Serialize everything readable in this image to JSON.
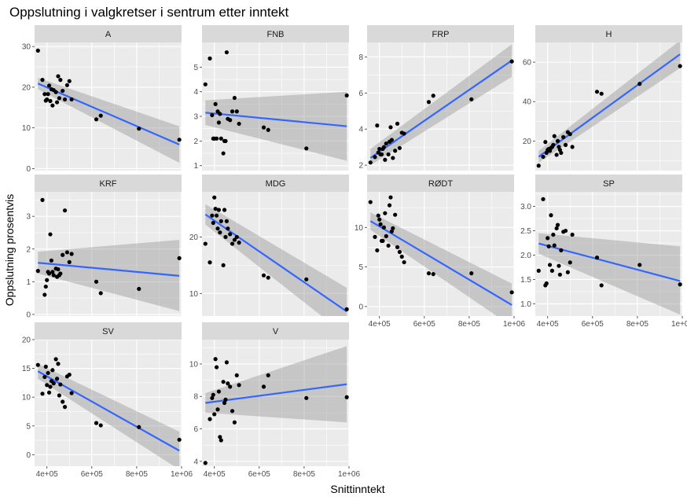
{
  "title": "Oppslutning i valgkretser i sentrum etter inntekt",
  "chart_data": {
    "type": "scatter",
    "title": "Oppslutning i valgkretser i sentrum etter inntekt",
    "xlabel": "Snittinntekt",
    "ylabel": "Oppslutning prosentvis",
    "x_ticks": [
      400000,
      600000,
      800000,
      1000000
    ],
    "x_tick_labels": [
      "4e+05",
      "6e+05",
      "8e+05",
      "1e+06"
    ],
    "xlim": [
      345000,
      1000000
    ],
    "grid": true,
    "facet_scales": "free_y",
    "colors": {
      "points": "#000000",
      "fit_line": "#3366FF",
      "ribbon": "#999999",
      "panel_bg": "#EBEBEB",
      "strip_bg": "#D9D9D9",
      "grid": "#FFFFFF"
    },
    "x": [
      360000,
      380000,
      390000,
      395000,
      400000,
      405000,
      410000,
      415000,
      420000,
      425000,
      430000,
      440000,
      445000,
      450000,
      455000,
      460000,
      470000,
      480000,
      490000,
      500000,
      510000,
      620000,
      640000,
      810000,
      990000
    ],
    "panels": [
      {
        "name": "A",
        "ylim": [
          -0.5,
          31
        ],
        "y_ticks": [
          0,
          10,
          20,
          30
        ],
        "y": [
          29,
          21.8,
          18.3,
          16.7,
          17,
          18.3,
          20.4,
          16.6,
          19.5,
          15.5,
          19.3,
          18.8,
          16.3,
          22.7,
          17.3,
          21.8,
          19.1,
          17,
          20.5,
          21.5,
          17,
          12.1,
          13,
          9.8,
          7.1
        ],
        "fit": {
          "y0": 20.9,
          "y1": 5.9,
          "lo0": 19.5,
          "hi0": 22.3,
          "lo1": 1.4,
          "hi1": 10.4
        }
      },
      {
        "name": "FNB",
        "ylim": [
          0.8,
          6.0
        ],
        "y_ticks": [
          1,
          2,
          3,
          4,
          5
        ],
        "y": [
          4.3,
          5.35,
          3.05,
          2.1,
          2.1,
          3.5,
          2.1,
          3.2,
          2.75,
          3.1,
          2.1,
          1.5,
          2.0,
          2.0,
          5.6,
          2.9,
          2.85,
          3.2,
          3.75,
          3.2,
          2.7,
          2.55,
          2.45,
          1.7,
          3.85
        ],
        "fit": {
          "y0": 3.15,
          "y1": 2.6,
          "lo0": 2.65,
          "hi0": 3.65,
          "lo1": 1.2,
          "hi1": 4.0
        }
      },
      {
        "name": "FRP",
        "ylim": [
          1.7,
          8.8
        ],
        "y_ticks": [
          2,
          4,
          6,
          8
        ],
        "y": [
          2.15,
          2.45,
          4.2,
          2.7,
          2.9,
          2.6,
          2.6,
          2.9,
          3.0,
          2.3,
          3.2,
          2.6,
          3.3,
          4.1,
          3.4,
          2.4,
          2.8,
          4.3,
          2.95,
          3.8,
          3.75,
          5.5,
          5.85,
          5.65,
          7.75
        ],
        "fit": {
          "y0": 2.4,
          "y1": 7.8,
          "lo0": 2.0,
          "hi0": 2.9,
          "lo1": 6.9,
          "hi1": 8.7
        }
      },
      {
        "name": "H",
        "ylim": [
          5,
          70
        ],
        "y_ticks": [
          20,
          40,
          60
        ],
        "y": [
          7.5,
          12,
          19.5,
          14,
          15.5,
          16,
          15,
          16.5,
          17,
          18,
          22.5,
          13,
          20,
          17,
          15.5,
          14,
          22,
          18,
          24.5,
          23.5,
          17,
          45,
          44,
          49,
          58
        ],
        "fit": {
          "y0": 12.0,
          "y1": 64.0,
          "lo0": 9.0,
          "hi0": 15.0,
          "lo1": 57.0,
          "hi1": 71.0
        }
      },
      {
        "name": "KRF",
        "ylim": [
          -0.05,
          3.75
        ],
        "y_ticks": [
          0,
          1,
          2,
          3
        ],
        "y": [
          1.33,
          3.5,
          0.6,
          0.85,
          1.05,
          1.3,
          1.25,
          2.45,
          1.65,
          1.3,
          1.2,
          1.4,
          1.15,
          1.38,
          1.2,
          1.25,
          1.82,
          3.18,
          1.9,
          1.6,
          1.85,
          1.0,
          0.65,
          0.78,
          1.72
        ],
        "fit": {
          "y0": 1.58,
          "y1": 1.18,
          "lo0": 1.25,
          "hi0": 1.92,
          "lo1": 0.1,
          "hi1": 2.28
        }
      },
      {
        "name": "MDG",
        "ylim": [
          6,
          28
        ],
        "y_ticks": [
          10,
          20
        ],
        "y": [
          18.8,
          15.5,
          23.8,
          22.5,
          27,
          25,
          23.8,
          21.5,
          24.8,
          20.8,
          22.8,
          15,
          24.8,
          20,
          22.8,
          21.5,
          20.5,
          18.8,
          19.5,
          20,
          19,
          13.2,
          12.8,
          12.5,
          7.2
        ],
        "fit": {
          "y0": 24.0,
          "y1": 6.8,
          "lo0": 22.2,
          "hi0": 25.8,
          "lo1": 2.5,
          "hi1": 11.0
        }
      },
      {
        "name": "RØDT",
        "ylim": [
          -1.2,
          14.5
        ],
        "y_ticks": [
          0,
          5,
          10
        ],
        "y": [
          13.2,
          8.8,
          7.1,
          11.5,
          11,
          10.4,
          8.3,
          8.3,
          10,
          11.8,
          8.9,
          7.7,
          12.8,
          13.8,
          9.5,
          9.9,
          11.6,
          7.5,
          6.9,
          6.3,
          5.6,
          4.2,
          4.1,
          4.2,
          1.8
        ],
        "fit": {
          "y0": 10.8,
          "y1": 0.2,
          "lo0": 9.7,
          "hi0": 11.9,
          "lo1": -2.5,
          "hi1": 2.9
        }
      },
      {
        "name": "SP",
        "ylim": [
          0.75,
          3.3
        ],
        "y_ticks": [
          1.0,
          1.5,
          2.0,
          2.5,
          3.0
        ],
        "y": [
          1.68,
          3.15,
          1.38,
          1.42,
          2.35,
          2.18,
          1.8,
          2.82,
          1.68,
          2.42,
          2.2,
          2.55,
          2.62,
          1.78,
          1.6,
          2.1,
          2.48,
          2.5,
          1.65,
          1.85,
          2.42,
          1.95,
          1.38,
          1.8,
          1.4
        ],
        "fit": {
          "y0": 2.24,
          "y1": 1.47,
          "lo0": 2.03,
          "hi0": 2.45,
          "lo1": 0.78,
          "hi1": 2.18
        }
      },
      {
        "name": "SV",
        "ylim": [
          -2,
          20
        ],
        "y_ticks": [
          0,
          5,
          10,
          15,
          20
        ],
        "y": [
          15.6,
          10.6,
          13.5,
          15.3,
          12.1,
          14.2,
          10.8,
          11.8,
          12.8,
          14.7,
          12.4,
          16.6,
          13.2,
          15.8,
          10.3,
          12.2,
          9.2,
          8.3,
          13.6,
          13.9,
          10.7,
          5.5,
          5.1,
          4.8,
          2.6
        ],
        "fit": {
          "y0": 14.5,
          "y1": 0.7,
          "lo0": 13.2,
          "hi0": 15.8,
          "lo1": -2.6,
          "hi1": 4.0
        }
      },
      {
        "name": "V",
        "ylim": [
          3.7,
          11.5
        ],
        "y_ticks": [
          4,
          6,
          8,
          10
        ],
        "y": [
          3.9,
          6.6,
          7.9,
          8.1,
          6.9,
          10.3,
          9.8,
          7.2,
          8.3,
          5.5,
          5.3,
          8.9,
          7.6,
          7.8,
          10.1,
          8.8,
          8.6,
          7.1,
          6.4,
          9.3,
          8.7,
          8.6,
          9.3,
          7.9,
          7.95
        ],
        "fit": {
          "y0": 7.6,
          "y1": 8.75,
          "lo0": 7.0,
          "hi0": 8.2,
          "lo1": 6.4,
          "hi1": 11.1
        }
      }
    ]
  }
}
